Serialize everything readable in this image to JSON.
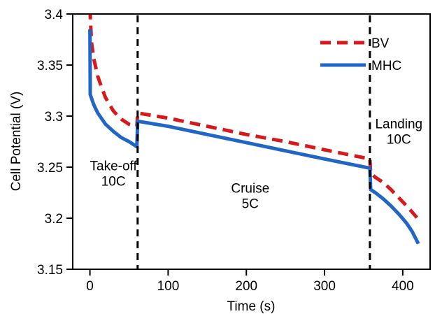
{
  "chart_data": {
    "type": "line",
    "xlabel": "Time (s)",
    "ylabel": "Cell Potential (V)",
    "xlim": [
      -22,
      435
    ],
    "ylim": [
      3.15,
      3.4
    ],
    "x_ticks": [
      0,
      100,
      200,
      300,
      400
    ],
    "x_tick_labels": [
      "0",
      "100",
      "200",
      "300",
      "400"
    ],
    "y_ticks": [
      3.15,
      3.2,
      3.25,
      3.3,
      3.35,
      3.4
    ],
    "y_tick_labels": [
      "3.15",
      "3.2",
      "3.25",
      "3.3",
      "3.35",
      "3.4"
    ],
    "grid": false,
    "legend_position": "top-right",
    "series": [
      {
        "name": "BV",
        "color": "#d7191c",
        "style": "dashed",
        "points": [
          [
            0,
            3.405
          ],
          [
            2,
            3.372
          ],
          [
            5,
            3.356
          ],
          [
            10,
            3.339
          ],
          [
            15,
            3.328
          ],
          [
            20,
            3.318
          ],
          [
            30,
            3.305
          ],
          [
            40,
            3.297
          ],
          [
            50,
            3.292
          ],
          [
            60,
            3.29
          ],
          [
            61,
            3.303
          ],
          [
            100,
            3.298
          ],
          [
            150,
            3.29
          ],
          [
            200,
            3.282
          ],
          [
            250,
            3.275
          ],
          [
            300,
            3.267
          ],
          [
            358,
            3.258
          ],
          [
            359,
            3.244
          ],
          [
            365,
            3.24
          ],
          [
            375,
            3.235
          ],
          [
            385,
            3.228
          ],
          [
            395,
            3.22
          ],
          [
            405,
            3.212
          ],
          [
            412,
            3.206
          ],
          [
            420,
            3.199
          ]
        ]
      },
      {
        "name": "MHC",
        "color": "#2166c6",
        "style": "solid",
        "points": [
          [
            0,
            3.385
          ],
          [
            0.4,
            3.321
          ],
          [
            5,
            3.311
          ],
          [
            10,
            3.303
          ],
          [
            20,
            3.292
          ],
          [
            30,
            3.285
          ],
          [
            40,
            3.279
          ],
          [
            50,
            3.275
          ],
          [
            60,
            3.27
          ],
          [
            61,
            3.295
          ],
          [
            100,
            3.29
          ],
          [
            150,
            3.282
          ],
          [
            200,
            3.274
          ],
          [
            250,
            3.266
          ],
          [
            300,
            3.258
          ],
          [
            358,
            3.249
          ],
          [
            359,
            3.228
          ],
          [
            365,
            3.225
          ],
          [
            375,
            3.219
          ],
          [
            385,
            3.212
          ],
          [
            395,
            3.204
          ],
          [
            405,
            3.195
          ],
          [
            412,
            3.187
          ],
          [
            420,
            3.175
          ]
        ]
      }
    ],
    "phase_boundaries": [
      61,
      358
    ],
    "annotations": [
      {
        "lines": [
          "Take-off",
          "10C"
        ],
        "x": 30,
        "y": [
          3.247,
          3.232
        ]
      },
      {
        "lines": [
          "Cruise",
          "5C"
        ],
        "x": 205,
        "y": [
          3.225,
          3.21
        ]
      },
      {
        "lines": [
          "Landing",
          "10C"
        ],
        "x": 395,
        "y": [
          3.288,
          3.273
        ]
      }
    ]
  }
}
